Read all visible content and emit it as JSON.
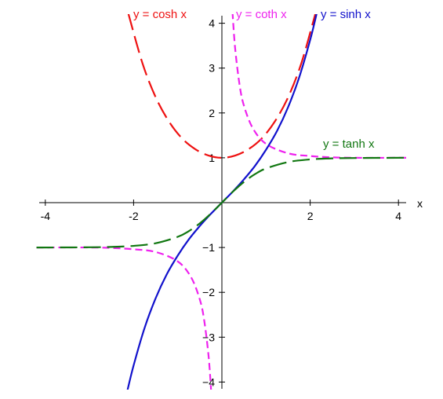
{
  "chart_data": {
    "type": "line",
    "xlabel": "x",
    "ylabel": "",
    "xlim": [
      -4.2,
      4.2
    ],
    "ylim": [
      -4.2,
      4.2
    ],
    "x_ticks": [
      {
        "value": -4,
        "label": "-4"
      },
      {
        "value": -2,
        "label": "-2"
      },
      {
        "value": 2,
        "label": "2"
      },
      {
        "value": 4,
        "label": "4"
      }
    ],
    "y_ticks": [
      {
        "value": -4,
        "label": "−4"
      },
      {
        "value": -3,
        "label": "−3"
      },
      {
        "value": -2,
        "label": "−2"
      },
      {
        "value": -1,
        "label": "−1"
      },
      {
        "value": 1,
        "label": "1"
      },
      {
        "value": 2,
        "label": "2"
      },
      {
        "value": 3,
        "label": "3"
      },
      {
        "value": 4,
        "label": "4"
      }
    ],
    "series": [
      {
        "name": "y = cosh x",
        "color": "#ee1111",
        "dash": "long-dash",
        "x": [
          -2.12,
          -1.8,
          -1.5,
          -1.2,
          -0.9,
          -0.6,
          -0.3,
          0,
          0.3,
          0.6,
          0.9,
          1.2,
          1.5,
          1.8,
          2.12
        ],
        "y": [
          4.22,
          3.11,
          2.35,
          1.81,
          1.43,
          1.19,
          1.05,
          1.0,
          1.05,
          1.19,
          1.43,
          1.81,
          2.35,
          3.11,
          4.22
        ]
      },
      {
        "name": "y = coth x",
        "color": "#ee22ee",
        "dash": "short-dash",
        "x": [
          0.24,
          0.3,
          0.4,
          0.5,
          0.7,
          1.0,
          1.5,
          2.0,
          2.5,
          3.0,
          4.0,
          4.2
        ],
        "y": [
          4.25,
          3.44,
          2.63,
          2.16,
          1.66,
          1.31,
          1.1,
          1.04,
          1.01,
          1.0,
          1.0,
          1.0
        ]
      },
      {
        "name": "",
        "color": "#ee22ee",
        "dash": "short-dash",
        "x": [
          -4.2,
          -4.0,
          -3.0,
          -2.5,
          -2.0,
          -1.5,
          -1.0,
          -0.7,
          -0.5,
          -0.4,
          -0.3,
          -0.24
        ],
        "y": [
          -1.0,
          -1.0,
          -1.0,
          -1.01,
          -1.04,
          -1.1,
          -1.31,
          -1.66,
          -2.16,
          -2.63,
          -3.44,
          -4.25
        ]
      },
      {
        "name": "y = sinh x",
        "color": "#1111cc",
        "dash": "solid",
        "x": [
          -2.15,
          -2.0,
          -1.75,
          -1.5,
          -1.25,
          -1.0,
          -0.75,
          -0.5,
          -0.25,
          0,
          0.25,
          0.5,
          0.75,
          1.0,
          1.25,
          1.5,
          1.75,
          2.0,
          2.15
        ],
        "y": [
          -4.23,
          -3.63,
          -2.79,
          -2.13,
          -1.6,
          -1.18,
          -0.82,
          -0.52,
          -0.25,
          0,
          0.25,
          0.52,
          0.82,
          1.18,
          1.6,
          2.13,
          2.79,
          3.63,
          4.23
        ]
      },
      {
        "name": "y = tanh x",
        "color": "#117711",
        "dash": "long-dash",
        "x": [
          -4.2,
          -4.0,
          -3.0,
          -2.5,
          -2.0,
          -1.5,
          -1.0,
          -0.75,
          -0.5,
          -0.25,
          0,
          0.25,
          0.5,
          0.75,
          1.0,
          1.5,
          2.0,
          2.5,
          3.0,
          4.0,
          4.2
        ],
        "y": [
          -1.0,
          -1.0,
          -0.995,
          -0.987,
          -0.964,
          -0.905,
          -0.762,
          -0.635,
          -0.462,
          -0.245,
          0,
          0.245,
          0.462,
          0.635,
          0.762,
          0.905,
          0.964,
          0.987,
          0.995,
          1.0,
          1.0
        ]
      }
    ]
  }
}
